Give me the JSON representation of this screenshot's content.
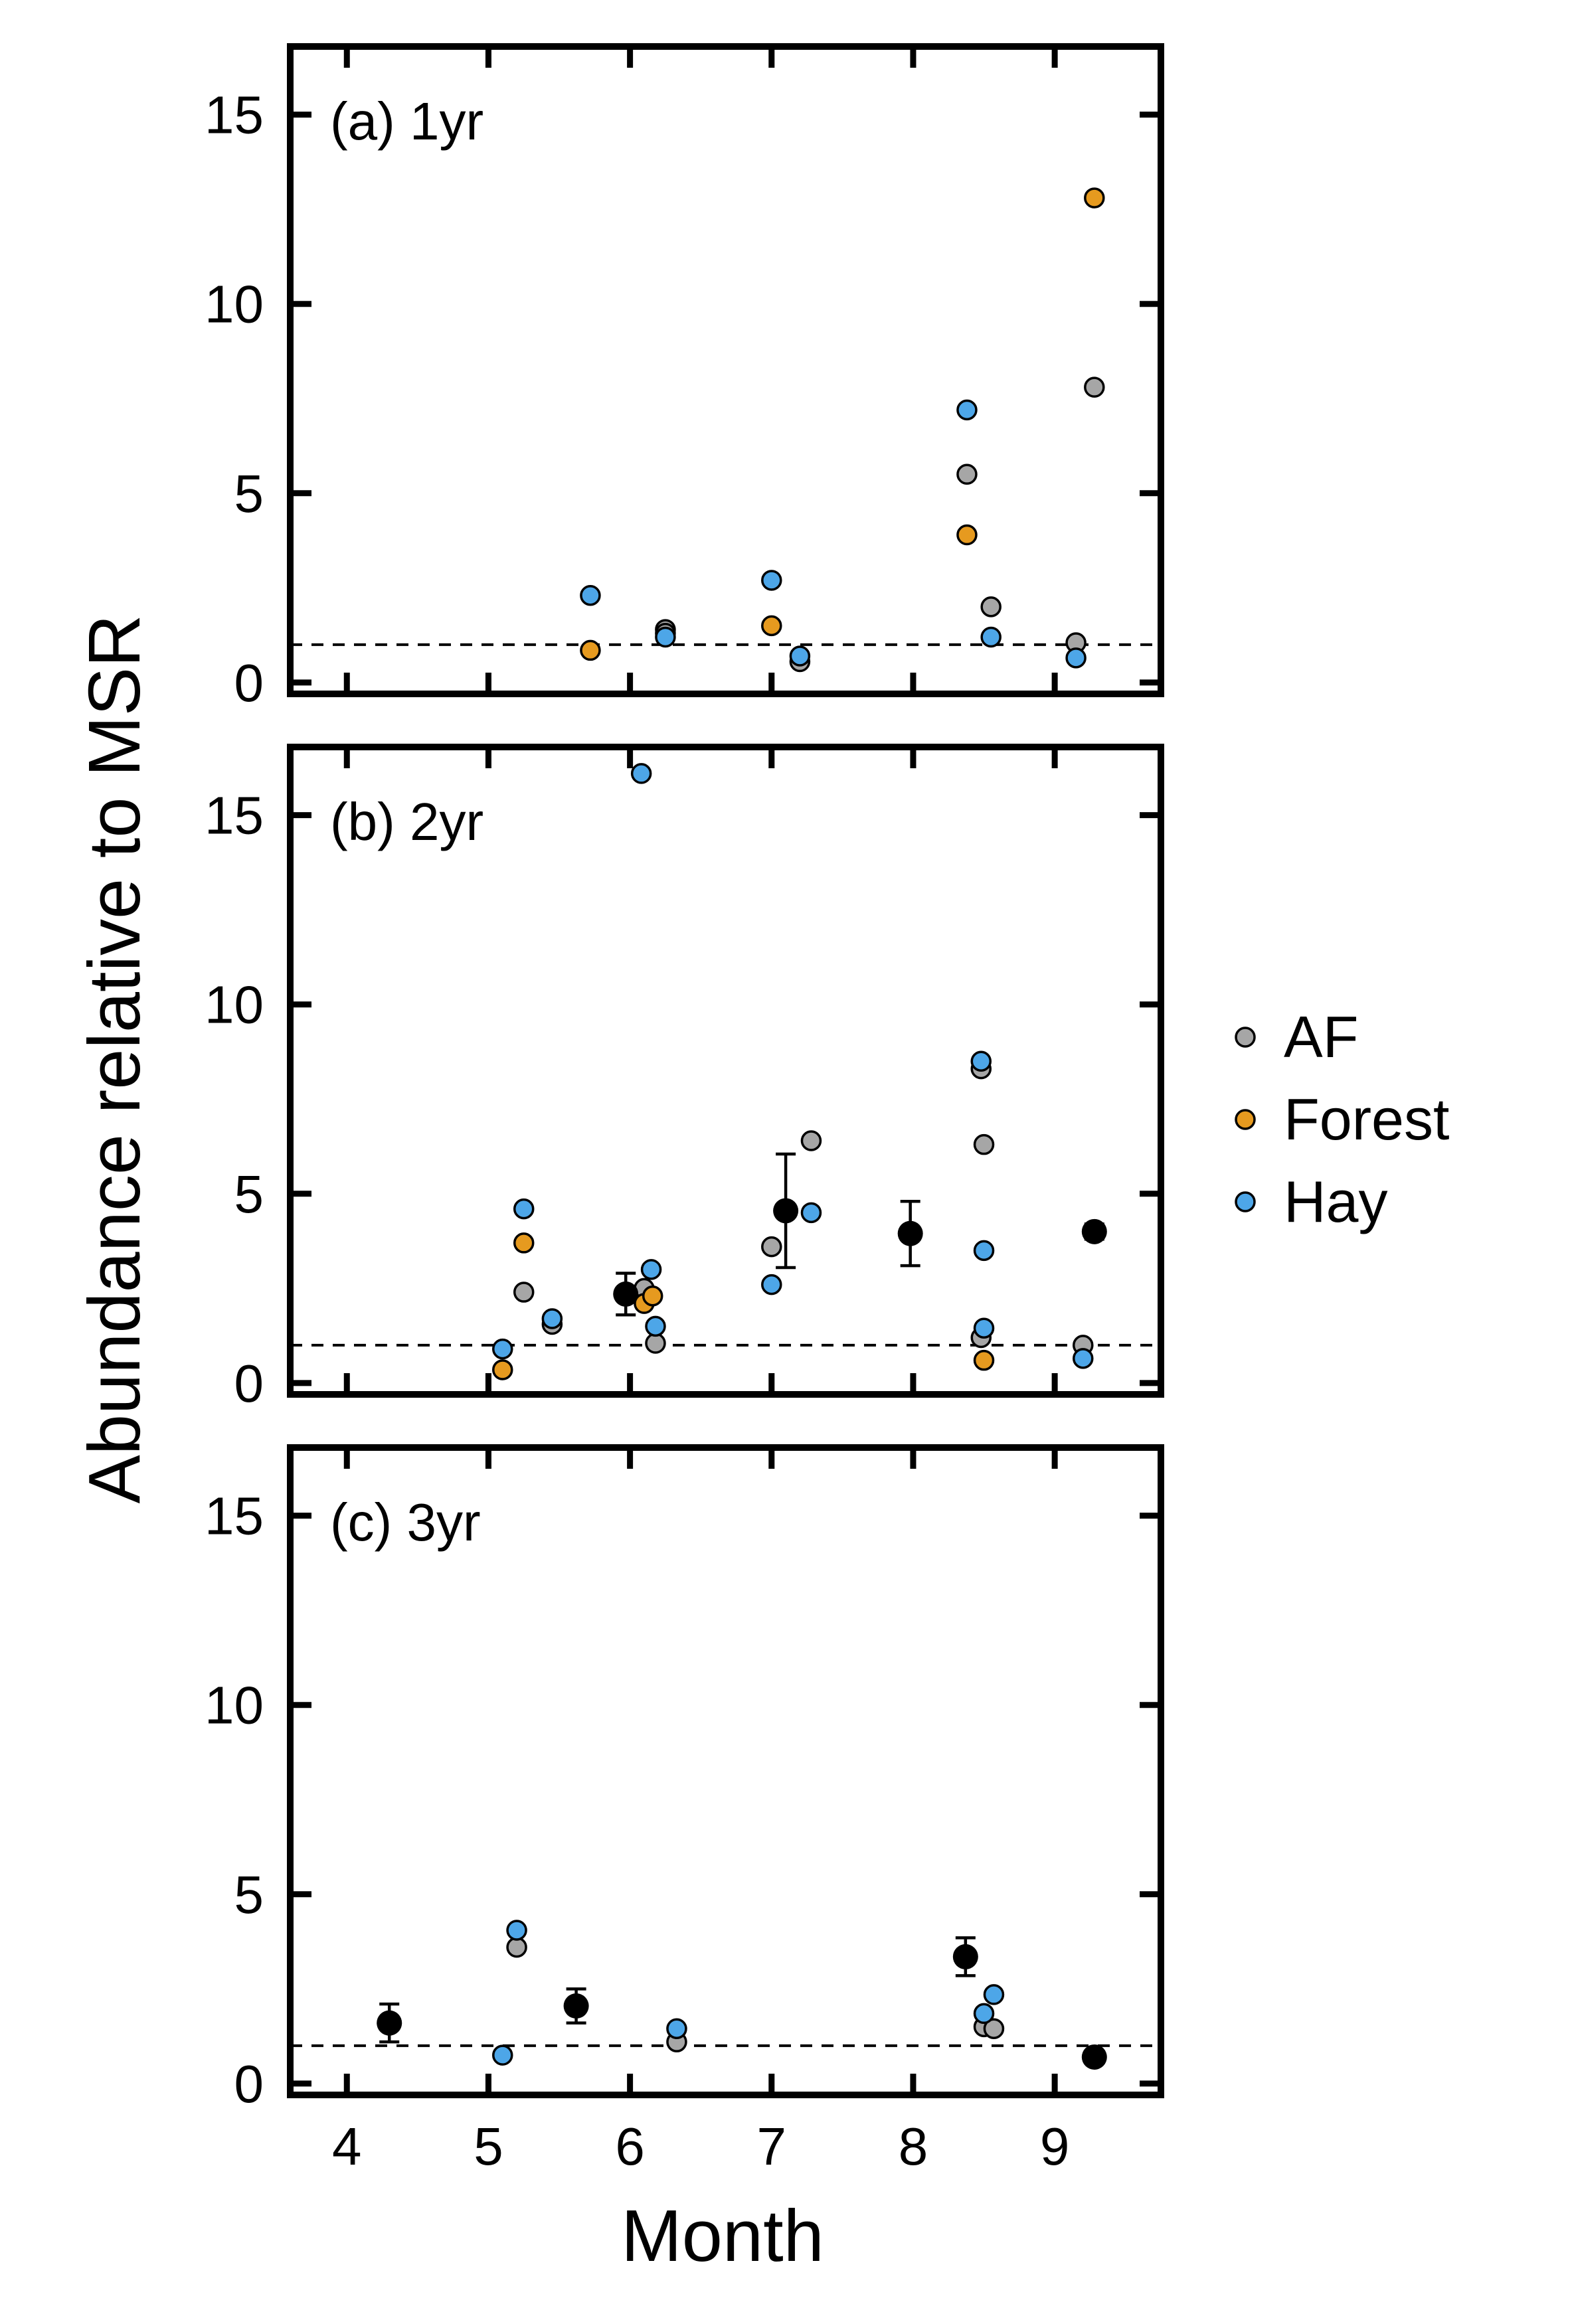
{
  "figure": {
    "ylabel": "Abundance relative to MSR",
    "xlabel": "Month"
  },
  "colors": {
    "AF": "#a6a6a6",
    "Forest": "#e69a1f",
    "Hay": "#4da6e8",
    "mean": "#000000"
  },
  "legend": {
    "placement": "right",
    "items": [
      {
        "key": "AF",
        "label": "AF"
      },
      {
        "key": "Forest",
        "label": "Forest"
      },
      {
        "key": "Hay",
        "label": "Hay"
      }
    ]
  },
  "chart_data": [
    {
      "type": "scatter",
      "panel_label": "(a) 1yr",
      "xlim": [
        3.6,
        9.75
      ],
      "ylim": [
        -0.3,
        16.8
      ],
      "yticks": [
        "0",
        "5",
        "10",
        "15"
      ],
      "xticks": [
        "4",
        "5",
        "6",
        "7",
        "8",
        "9"
      ],
      "show_xtick_labels": false,
      "reference_line": 1,
      "series": [
        {
          "name": "AF",
          "points": [
            [
              6.25,
              1.4
            ],
            [
              6.25,
              1.3
            ],
            [
              7.2,
              0.55
            ],
            [
              8.38,
              5.5
            ],
            [
              8.55,
              2.0
            ],
            [
              9.15,
              1.05
            ],
            [
              9.28,
              7.8
            ]
          ]
        },
        {
          "name": "Forest",
          "points": [
            [
              5.72,
              0.85
            ],
            [
              7.0,
              1.5
            ],
            [
              8.38,
              3.9
            ],
            [
              9.28,
              12.8
            ]
          ]
        },
        {
          "name": "Hay",
          "points": [
            [
              5.72,
              2.3
            ],
            [
              6.25,
              1.2
            ],
            [
              7.0,
              2.7
            ],
            [
              7.2,
              0.7
            ],
            [
              8.38,
              7.2
            ],
            [
              8.55,
              1.2
            ],
            [
              9.15,
              0.65
            ]
          ]
        }
      ],
      "means": []
    },
    {
      "type": "scatter",
      "panel_label": "(b) 2yr",
      "xlim": [
        3.6,
        9.75
      ],
      "ylim": [
        -0.3,
        16.8
      ],
      "yticks": [
        "0",
        "5",
        "10",
        "15"
      ],
      "xticks": [
        "4",
        "5",
        "6",
        "7",
        "8",
        "9"
      ],
      "show_xtick_labels": false,
      "reference_line": 1,
      "series": [
        {
          "name": "AF",
          "points": [
            [
              5.25,
              2.4
            ],
            [
              5.45,
              1.55
            ],
            [
              6.1,
              2.5
            ],
            [
              6.18,
              1.05
            ],
            [
              7.0,
              3.6
            ],
            [
              7.28,
              6.4
            ],
            [
              8.48,
              8.3
            ],
            [
              8.5,
              6.3
            ],
            [
              8.48,
              1.2
            ],
            [
              9.2,
              1.0
            ]
          ]
        },
        {
          "name": "Forest",
          "points": [
            [
              5.1,
              0.35
            ],
            [
              5.25,
              3.7
            ],
            [
              6.1,
              2.1
            ],
            [
              6.16,
              2.3
            ],
            [
              8.5,
              0.6
            ]
          ]
        },
        {
          "name": "Hay",
          "points": [
            [
              5.1,
              0.9
            ],
            [
              5.25,
              4.6
            ],
            [
              5.45,
              1.7
            ],
            [
              6.08,
              16.1
            ],
            [
              6.15,
              3.0
            ],
            [
              6.18,
              1.5
            ],
            [
              7.0,
              2.6
            ],
            [
              7.28,
              4.5
            ],
            [
              8.48,
              8.5
            ],
            [
              8.5,
              3.5
            ],
            [
              8.5,
              1.45
            ],
            [
              9.2,
              0.65
            ]
          ]
        }
      ],
      "means": [
        {
          "x": 5.97,
          "y": 2.35,
          "err": 0.55
        },
        {
          "x": 7.1,
          "y": 4.55,
          "err": 1.5
        },
        {
          "x": 7.98,
          "y": 3.95,
          "err": 0.85
        },
        {
          "x": 9.28,
          "y": 4.0,
          "err": 0.2
        }
      ]
    },
    {
      "type": "scatter",
      "panel_label": "(c) 3yr",
      "xlim": [
        3.6,
        9.75
      ],
      "ylim": [
        -0.3,
        16.8
      ],
      "yticks": [
        "0",
        "5",
        "10",
        "15"
      ],
      "xticks": [
        "4",
        "5",
        "6",
        "7",
        "8",
        "9"
      ],
      "show_xtick_labels": true,
      "reference_line": 1,
      "series": [
        {
          "name": "AF",
          "points": [
            [
              5.2,
              3.6
            ],
            [
              6.33,
              1.1
            ],
            [
              8.5,
              1.5
            ],
            [
              8.57,
              1.45
            ]
          ]
        },
        {
          "name": "Forest",
          "points": []
        },
        {
          "name": "Hay",
          "points": [
            [
              5.1,
              0.75
            ],
            [
              5.2,
              4.05
            ],
            [
              6.33,
              1.45
            ],
            [
              8.5,
              1.85
            ],
            [
              8.57,
              2.35
            ]
          ]
        }
      ],
      "means": [
        {
          "x": 4.3,
          "y": 1.6,
          "err": 0.5
        },
        {
          "x": 5.62,
          "y": 2.05,
          "err": 0.45
        },
        {
          "x": 8.37,
          "y": 3.35,
          "err": 0.5
        },
        {
          "x": 9.28,
          "y": 0.7,
          "err": 0.1
        }
      ]
    }
  ]
}
